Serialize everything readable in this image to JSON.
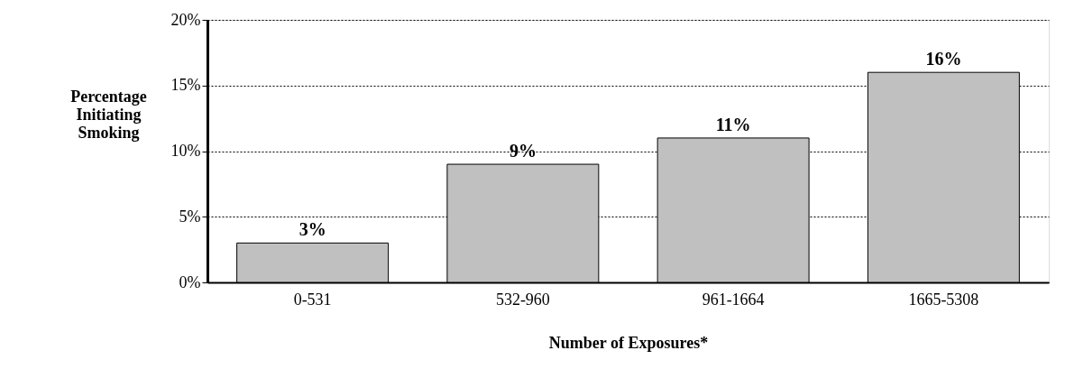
{
  "chart_data": {
    "type": "bar",
    "categories": [
      "0-531",
      "532-960",
      "961-1664",
      "1665-5308"
    ],
    "values": [
      3,
      9,
      11,
      16
    ],
    "value_labels": [
      "3%",
      "9%",
      "11%",
      "16%"
    ],
    "color": "#c0c0c0",
    "xlabel": "Number of Exposures*",
    "ylabel": "Percentage Initiating Smoking",
    "ylim": [
      0,
      20
    ],
    "yticks": [
      {
        "value": 0,
        "label": "0%"
      },
      {
        "value": 5,
        "label": "5%"
      },
      {
        "value": 10,
        "label": "10%"
      },
      {
        "value": 15,
        "label": "15%"
      },
      {
        "value": 20,
        "label": "20%"
      }
    ],
    "grid": "y"
  }
}
